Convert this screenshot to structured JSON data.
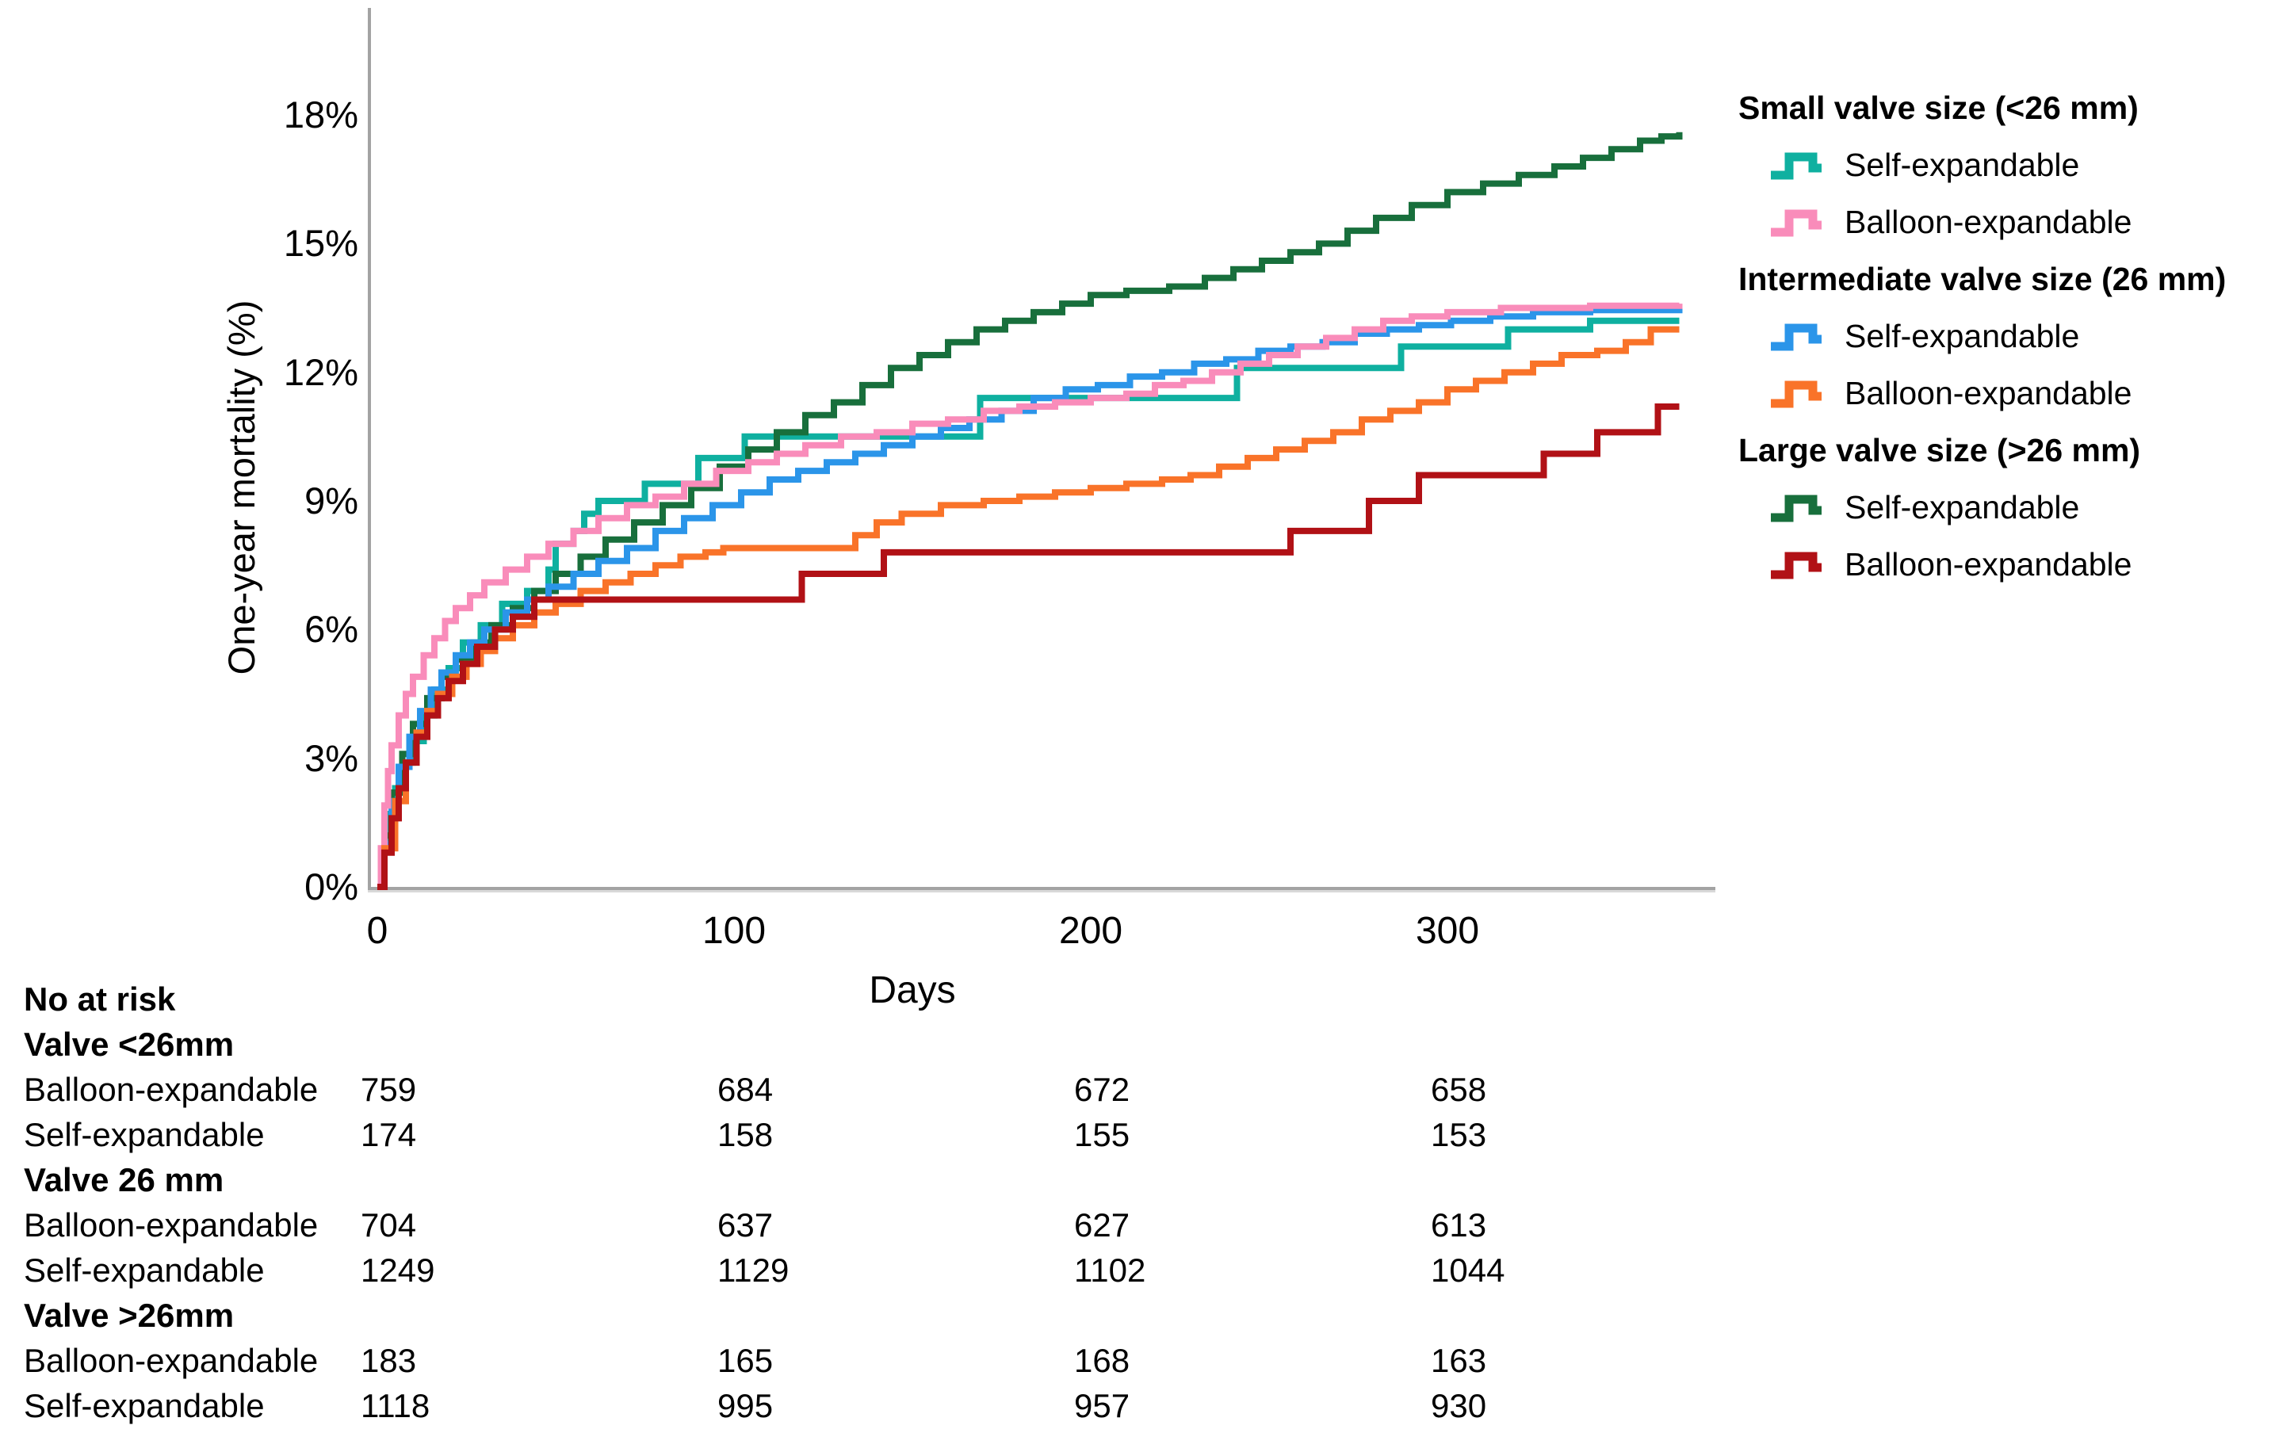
{
  "chart_data": {
    "type": "line",
    "subtype": "kaplan-meier-step",
    "title": "",
    "xlabel": "Days",
    "ylabel": "One-year mortality (%)",
    "xlim": [
      0,
      365
    ],
    "ylim": [
      0,
      18
    ],
    "grid": false,
    "legend_position": "right",
    "xticks": [
      {
        "value": 0,
        "label": "0"
      },
      {
        "value": 100,
        "label": "100"
      },
      {
        "value": 200,
        "label": "200"
      },
      {
        "value": 300,
        "label": "300"
      }
    ],
    "yticks": [
      {
        "value": 0,
        "label": "0%"
      },
      {
        "value": 3,
        "label": "3%"
      },
      {
        "value": 6,
        "label": "6%"
      },
      {
        "value": 9,
        "label": "9%"
      },
      {
        "value": 12,
        "label": "12%"
      },
      {
        "value": 15,
        "label": "15%"
      },
      {
        "value": 18,
        "label": "18%"
      }
    ],
    "series": [
      {
        "id": "small_self",
        "group": "Small valve size (<26 mm)",
        "label": "Self-expandable",
        "color": "#0fb0a0",
        "points": [
          [
            0,
            0
          ],
          [
            2,
            1.1
          ],
          [
            3,
            1.7
          ],
          [
            5,
            2.3
          ],
          [
            7,
            2.9
          ],
          [
            10,
            3.4
          ],
          [
            13,
            4.0
          ],
          [
            16,
            4.6
          ],
          [
            20,
            5.1
          ],
          [
            24,
            5.7
          ],
          [
            29,
            6.1
          ],
          [
            35,
            6.6
          ],
          [
            42,
            6.9
          ],
          [
            48,
            7.4
          ],
          [
            50,
            8.0
          ],
          [
            55,
            8.3
          ],
          [
            58,
            8.7
          ],
          [
            62,
            9.0
          ],
          [
            75,
            9.4
          ],
          [
            90,
            10.0
          ],
          [
            103,
            10.5
          ],
          [
            168,
            10.5
          ],
          [
            169,
            11.4
          ],
          [
            240,
            11.4
          ],
          [
            241,
            12.1
          ],
          [
            286,
            12.1
          ],
          [
            287,
            12.6
          ],
          [
            316,
            12.6
          ],
          [
            317,
            13.0
          ],
          [
            340,
            13.2
          ],
          [
            365,
            13.2
          ]
        ]
      },
      {
        "id": "large_self",
        "group": "Large valve size (>26 mm)",
        "label": "Self-expandable",
        "color": "#186f3c",
        "points": [
          [
            0,
            0
          ],
          [
            2,
            1.2
          ],
          [
            4,
            2.2
          ],
          [
            7,
            3.1
          ],
          [
            10,
            3.8
          ],
          [
            14,
            4.4
          ],
          [
            18,
            4.9
          ],
          [
            22,
            5.3
          ],
          [
            27,
            5.7
          ],
          [
            32,
            6.1
          ],
          [
            38,
            6.5
          ],
          [
            44,
            6.9
          ],
          [
            50,
            7.3
          ],
          [
            57,
            7.7
          ],
          [
            64,
            8.1
          ],
          [
            72,
            8.5
          ],
          [
            80,
            8.9
          ],
          [
            88,
            9.3
          ],
          [
            96,
            9.8
          ],
          [
            104,
            10.2
          ],
          [
            112,
            10.6
          ],
          [
            120,
            11.0
          ],
          [
            128,
            11.3
          ],
          [
            136,
            11.7
          ],
          [
            144,
            12.1
          ],
          [
            152,
            12.4
          ],
          [
            160,
            12.7
          ],
          [
            168,
            13.0
          ],
          [
            176,
            13.2
          ],
          [
            184,
            13.4
          ],
          [
            192,
            13.6
          ],
          [
            200,
            13.8
          ],
          [
            210,
            13.9
          ],
          [
            222,
            14.0
          ],
          [
            232,
            14.2
          ],
          [
            240,
            14.4
          ],
          [
            248,
            14.6
          ],
          [
            256,
            14.8
          ],
          [
            264,
            15.0
          ],
          [
            272,
            15.3
          ],
          [
            280,
            15.6
          ],
          [
            290,
            15.9
          ],
          [
            300,
            16.2
          ],
          [
            310,
            16.4
          ],
          [
            320,
            16.6
          ],
          [
            330,
            16.8
          ],
          [
            338,
            17.0
          ],
          [
            346,
            17.2
          ],
          [
            354,
            17.4
          ],
          [
            360,
            17.5
          ],
          [
            365,
            17.6
          ]
        ]
      },
      {
        "id": "int_self",
        "group": "Intermediate valve size (26 mm)",
        "label": "Self-expandable",
        "color": "#2b95e9",
        "points": [
          [
            0,
            0
          ],
          [
            2,
            1.0
          ],
          [
            4,
            2.0
          ],
          [
            6,
            2.8
          ],
          [
            9,
            3.5
          ],
          [
            12,
            4.1
          ],
          [
            15,
            4.6
          ],
          [
            18,
            5.0
          ],
          [
            22,
            5.4
          ],
          [
            26,
            5.7
          ],
          [
            30,
            6.0
          ],
          [
            36,
            6.4
          ],
          [
            42,
            6.7
          ],
          [
            48,
            7.0
          ],
          [
            55,
            7.3
          ],
          [
            62,
            7.6
          ],
          [
            70,
            7.9
          ],
          [
            78,
            8.3
          ],
          [
            86,
            8.6
          ],
          [
            94,
            8.9
          ],
          [
            102,
            9.2
          ],
          [
            110,
            9.5
          ],
          [
            118,
            9.7
          ],
          [
            126,
            9.9
          ],
          [
            134,
            10.1
          ],
          [
            142,
            10.3
          ],
          [
            150,
            10.5
          ],
          [
            158,
            10.7
          ],
          [
            166,
            10.9
          ],
          [
            175,
            11.1
          ],
          [
            184,
            11.4
          ],
          [
            193,
            11.6
          ],
          [
            202,
            11.7
          ],
          [
            211,
            11.9
          ],
          [
            220,
            12.0
          ],
          [
            229,
            12.2
          ],
          [
            238,
            12.3
          ],
          [
            247,
            12.5
          ],
          [
            256,
            12.6
          ],
          [
            265,
            12.7
          ],
          [
            274,
            12.9
          ],
          [
            283,
            13.0
          ],
          [
            292,
            13.1
          ],
          [
            301,
            13.2
          ],
          [
            312,
            13.3
          ],
          [
            324,
            13.4
          ],
          [
            340,
            13.45
          ],
          [
            365,
            13.5
          ]
        ]
      },
      {
        "id": "small_balloon",
        "group": "Small valve size (<26 mm)",
        "label": "Balloon-expandable",
        "color": "#f98cba",
        "points": [
          [
            0,
            0
          ],
          [
            1,
            0.9
          ],
          [
            2,
            1.9
          ],
          [
            3,
            2.7
          ],
          [
            4,
            3.3
          ],
          [
            6,
            4.0
          ],
          [
            8,
            4.5
          ],
          [
            10,
            4.9
          ],
          [
            13,
            5.4
          ],
          [
            16,
            5.8
          ],
          [
            19,
            6.2
          ],
          [
            22,
            6.5
          ],
          [
            26,
            6.8
          ],
          [
            30,
            7.1
          ],
          [
            36,
            7.4
          ],
          [
            42,
            7.7
          ],
          [
            48,
            8.0
          ],
          [
            55,
            8.3
          ],
          [
            62,
            8.6
          ],
          [
            70,
            8.9
          ],
          [
            78,
            9.1
          ],
          [
            86,
            9.4
          ],
          [
            95,
            9.7
          ],
          [
            104,
            9.9
          ],
          [
            112,
            10.1
          ],
          [
            120,
            10.3
          ],
          [
            130,
            10.5
          ],
          [
            140,
            10.6
          ],
          [
            150,
            10.8
          ],
          [
            160,
            10.9
          ],
          [
            170,
            11.1
          ],
          [
            180,
            11.2
          ],
          [
            190,
            11.3
          ],
          [
            200,
            11.4
          ],
          [
            210,
            11.5
          ],
          [
            218,
            11.7
          ],
          [
            226,
            11.8
          ],
          [
            234,
            12.0
          ],
          [
            242,
            12.2
          ],
          [
            250,
            12.4
          ],
          [
            258,
            12.6
          ],
          [
            266,
            12.8
          ],
          [
            274,
            13.0
          ],
          [
            282,
            13.2
          ],
          [
            290,
            13.3
          ],
          [
            300,
            13.4
          ],
          [
            315,
            13.5
          ],
          [
            340,
            13.55
          ],
          [
            365,
            13.6
          ]
        ]
      },
      {
        "id": "int_balloon",
        "group": "Intermediate valve size (26 mm)",
        "label": "Balloon-expandable",
        "color": "#f97329",
        "points": [
          [
            0,
            0
          ],
          [
            2,
            0.9
          ],
          [
            5,
            2.0
          ],
          [
            8,
            2.9
          ],
          [
            11,
            3.6
          ],
          [
            14,
            4.1
          ],
          [
            17,
            4.5
          ],
          [
            21,
            4.9
          ],
          [
            25,
            5.2
          ],
          [
            29,
            5.5
          ],
          [
            33,
            5.8
          ],
          [
            38,
            6.1
          ],
          [
            44,
            6.4
          ],
          [
            50,
            6.6
          ],
          [
            57,
            6.9
          ],
          [
            64,
            7.1
          ],
          [
            71,
            7.3
          ],
          [
            78,
            7.5
          ],
          [
            85,
            7.7
          ],
          [
            92,
            7.8
          ],
          [
            97,
            7.9
          ],
          [
            128,
            7.9
          ],
          [
            134,
            8.2
          ],
          [
            140,
            8.5
          ],
          [
            147,
            8.7
          ],
          [
            158,
            8.9
          ],
          [
            170,
            9.0
          ],
          [
            180,
            9.1
          ],
          [
            190,
            9.2
          ],
          [
            200,
            9.3
          ],
          [
            210,
            9.4
          ],
          [
            220,
            9.5
          ],
          [
            228,
            9.6
          ],
          [
            236,
            9.8
          ],
          [
            244,
            10.0
          ],
          [
            252,
            10.2
          ],
          [
            260,
            10.4
          ],
          [
            268,
            10.6
          ],
          [
            276,
            10.9
          ],
          [
            284,
            11.1
          ],
          [
            292,
            11.3
          ],
          [
            300,
            11.6
          ],
          [
            308,
            11.8
          ],
          [
            316,
            12.0
          ],
          [
            324,
            12.2
          ],
          [
            332,
            12.4
          ],
          [
            342,
            12.5
          ],
          [
            350,
            12.7
          ],
          [
            357,
            13.0
          ],
          [
            365,
            13.0
          ]
        ]
      },
      {
        "id": "large_balloon",
        "group": "Large valve size (>26 mm)",
        "label": "Balloon-expandable",
        "color": "#b11116",
        "points": [
          [
            0,
            0
          ],
          [
            2,
            0.8
          ],
          [
            4,
            1.6
          ],
          [
            6,
            2.3
          ],
          [
            8,
            2.9
          ],
          [
            11,
            3.5
          ],
          [
            14,
            4.0
          ],
          [
            17,
            4.4
          ],
          [
            20,
            4.8
          ],
          [
            24,
            5.2
          ],
          [
            28,
            5.6
          ],
          [
            33,
            6.0
          ],
          [
            38,
            6.3
          ],
          [
            44,
            6.7
          ],
          [
            118,
            6.7
          ],
          [
            119,
            7.3
          ],
          [
            141,
            7.3
          ],
          [
            142,
            7.8
          ],
          [
            255,
            7.8
          ],
          [
            256,
            8.3
          ],
          [
            277,
            8.3
          ],
          [
            278,
            9.0
          ],
          [
            291,
            9.0
          ],
          [
            292,
            9.6
          ],
          [
            326,
            9.6
          ],
          [
            327,
            10.1
          ],
          [
            341,
            10.1
          ],
          [
            342,
            10.6
          ],
          [
            358,
            10.6
          ],
          [
            359,
            11.2
          ],
          [
            365,
            11.2
          ]
        ]
      }
    ],
    "legend_groups": [
      {
        "header": "Small valve size (<26 mm)",
        "items": [
          {
            "label": "Self-expandable",
            "series": "small_self"
          },
          {
            "label": "Balloon-expandable",
            "series": "small_balloon"
          }
        ]
      },
      {
        "header": "Intermediate valve size (26 mm)",
        "items": [
          {
            "label": "Self-expandable",
            "series": "int_self"
          },
          {
            "label": "Balloon-expandable",
            "series": "int_balloon"
          }
        ]
      },
      {
        "header": "Large valve size (>26 mm)",
        "items": [
          {
            "label": "Self-expandable",
            "series": "large_self"
          },
          {
            "label": "Balloon-expandable",
            "series": "large_balloon"
          }
        ]
      }
    ],
    "risk_table": {
      "title": "No at risk",
      "timepoints": [
        0,
        100,
        200,
        300
      ],
      "groups": [
        {
          "header": "Valve <26mm",
          "rows": [
            {
              "label": "Balloon-expandable",
              "values": [
                "759",
                "684",
                "672",
                "658"
              ]
            },
            {
              "label": "Self-expandable",
              "values": [
                "174",
                "158",
                "155",
                "153"
              ]
            }
          ]
        },
        {
          "header": "Valve 26 mm",
          "rows": [
            {
              "label": "Balloon-expandable",
              "values": [
                "704",
                "637",
                "627",
                "613"
              ]
            },
            {
              "label": "Self-expandable",
              "values": [
                "1249",
                "1129",
                "1102",
                "1044"
              ]
            }
          ]
        },
        {
          "header": "Valve >26mm",
          "rows": [
            {
              "label": "Balloon-expandable",
              "values": [
                "183",
                "165",
                "168",
                "163"
              ]
            },
            {
              "label": "Self-expandable",
              "values": [
                "1118",
                "995",
                "957",
                "930"
              ]
            }
          ]
        }
      ]
    }
  }
}
